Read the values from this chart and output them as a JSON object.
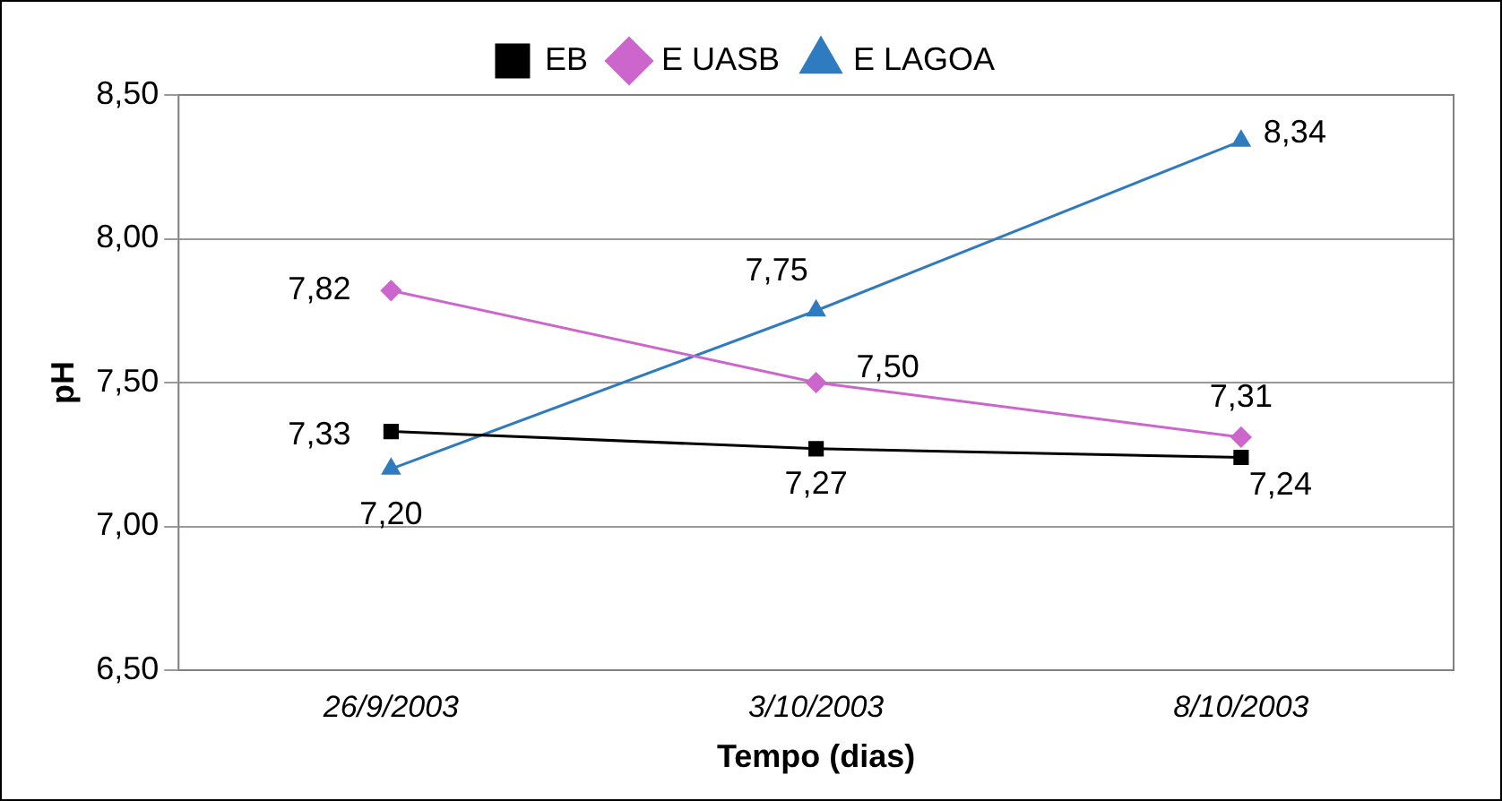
{
  "chart_data": {
    "type": "line",
    "xlabel": "Tempo (dias)",
    "ylabel": "pH",
    "categories": [
      "26/9/2003",
      "3/10/2003",
      "8/10/2003"
    ],
    "series": [
      {
        "name": "EB",
        "color": "#000000",
        "marker": "square",
        "values": [
          7.33,
          7.27,
          7.24
        ],
        "value_labels": [
          "7,33",
          "7,27",
          "7,24"
        ]
      },
      {
        "name": "E UASB",
        "color": "#cc66cc",
        "marker": "diamond",
        "values": [
          7.82,
          7.5,
          7.31
        ],
        "value_labels": [
          "7,82",
          "7,50",
          "7,31"
        ]
      },
      {
        "name": "E LAGOA",
        "color": "#2e7bbf",
        "marker": "triangle",
        "values": [
          7.2,
          7.75,
          8.34
        ],
        "value_labels": [
          "7,20",
          "7,75",
          "8,34"
        ]
      }
    ],
    "ylim": [
      6.5,
      8.5
    ],
    "yticks": [
      {
        "value": 6.5,
        "label": "6,50"
      },
      {
        "value": 7,
        "label": "7,00"
      },
      {
        "value": 7.5,
        "label": "7,50"
      },
      {
        "value": 8,
        "label": "8,00"
      },
      {
        "value": 8.5,
        "label": "8,50"
      }
    ],
    "grid": "y",
    "legend": "top"
  }
}
